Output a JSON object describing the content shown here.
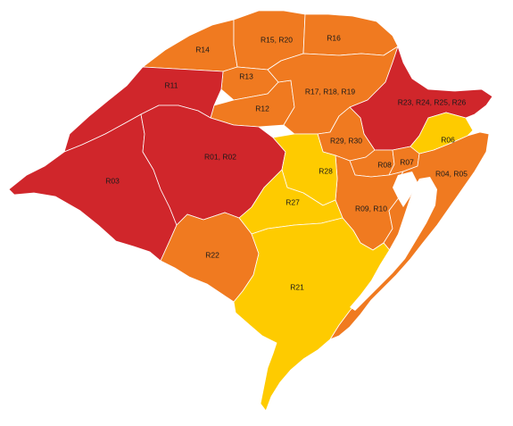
{
  "legend_colors": {
    "red": "#d0262b",
    "orange": "#f07a20",
    "yellow": "#fecb00"
  },
  "regions": {
    "r03": {
      "label": "R03",
      "color": "#d0262b"
    },
    "r11": {
      "label": "R11",
      "color": "#d0262b"
    },
    "r0102": {
      "label": "R01, R02",
      "color": "#d0262b"
    },
    "r23": {
      "label": "R23, R24, R25, R26",
      "color": "#d0262b"
    },
    "r14": {
      "label": "R14",
      "color": "#f07a20"
    },
    "r1520": {
      "label": "R15, R20",
      "color": "#f07a20"
    },
    "r16": {
      "label": "R16",
      "color": "#f07a20"
    },
    "r13": {
      "label": "R13",
      "color": "#f07a20"
    },
    "r12": {
      "label": "R12",
      "color": "#f07a20"
    },
    "r171819": {
      "label": "R17, R18, R19",
      "color": "#f07a20"
    },
    "r2930": {
      "label": "R29, R30",
      "color": "#f07a20"
    },
    "r08": {
      "label": "R08",
      "color": "#f07a20"
    },
    "r07": {
      "label": "R07",
      "color": "#f07a20"
    },
    "r0405": {
      "label": "R04, R05",
      "color": "#f07a20"
    },
    "r0910": {
      "label": "R09, R10",
      "color": "#f07a20"
    },
    "r22": {
      "label": "R22",
      "color": "#f07a20"
    },
    "r06": {
      "label": "R06",
      "color": "#fecb00"
    },
    "r28": {
      "label": "R28",
      "color": "#fecb00"
    },
    "r27": {
      "label": "R27",
      "color": "#fecb00"
    },
    "r21": {
      "label": "R21",
      "color": "#fecb00"
    }
  }
}
